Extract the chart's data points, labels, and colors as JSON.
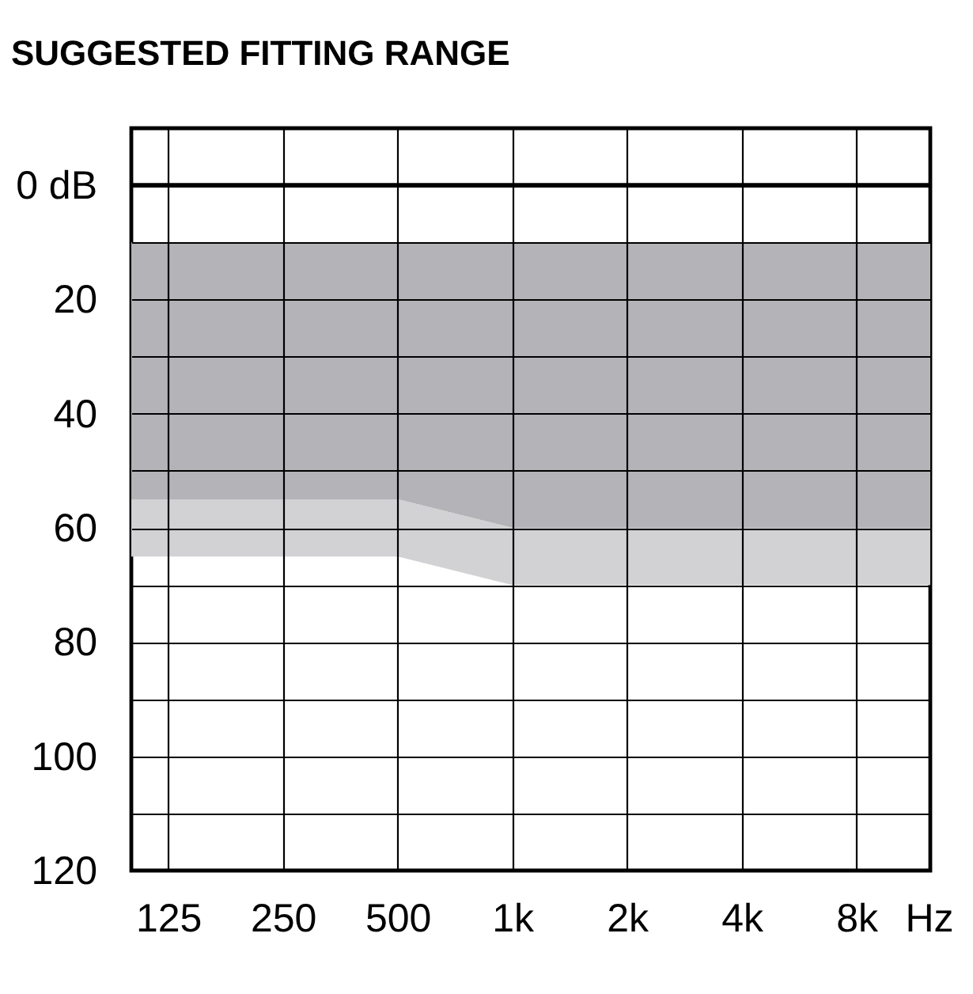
{
  "chart_data": {
    "type": "area",
    "title": "SUGGESTED FITTING RANGE",
    "xlabel": "Hz",
    "log": "x",
    "xlim": [
      100,
      12500
    ],
    "xticks": [
      125,
      250,
      500,
      {
        "value": 1000,
        "label": "1k"
      },
      {
        "value": 2000,
        "label": "2k"
      },
      {
        "value": 4000,
        "label": "4k"
      },
      {
        "value": 8000,
        "label": "8k"
      }
    ],
    "ylim": [
      120,
      -10
    ],
    "yticks": [
      {
        "value": 0,
        "label": "0 dB"
      },
      {
        "value": 10,
        "label": null
      },
      20,
      {
        "value": 30,
        "label": null
      },
      40,
      {
        "value": 50,
        "label": null
      },
      60,
      {
        "value": 70,
        "label": null
      },
      80,
      {
        "value": 90,
        "label": null
      },
      100,
      {
        "value": 110,
        "label": null
      },
      120
    ],
    "grid": true,
    "series": [
      {
        "color": "#b4b4b8",
        "x": [
          100,
          500,
          1000,
          12500
        ],
        "values": [
          null,
          null,
          null,
          null
        ],
        "lower": [
          10,
          10,
          10,
          10
        ],
        "upper": [
          55,
          55,
          60,
          60
        ]
      },
      {
        "color": "#d2d2d4",
        "x": [
          100,
          500,
          1000,
          12500
        ],
        "values": [
          null,
          null,
          null,
          null
        ],
        "lower": [
          55,
          55,
          60,
          60
        ],
        "upper": [
          65,
          65,
          70,
          70
        ]
      }
    ],
    "ref_lines": [
      {
        "axis": "y",
        "value": 0,
        "color": "#000000"
      }
    ]
  }
}
